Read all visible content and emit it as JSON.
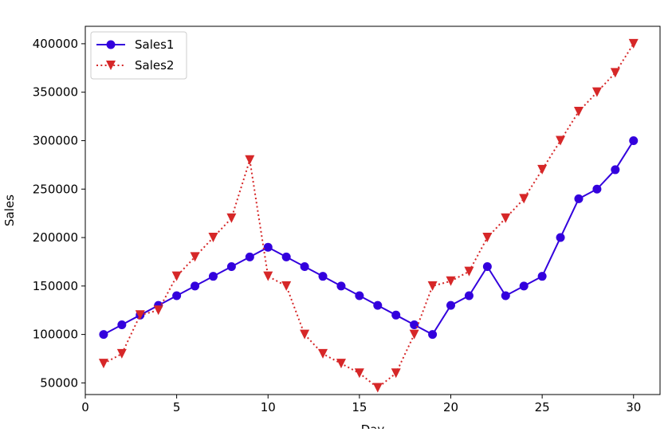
{
  "chart_data": {
    "type": "line",
    "title": "",
    "xlabel": "Day",
    "ylabel": "Sales",
    "xlim": [
      0,
      31.45
    ],
    "ylim": [
      38000,
      418000
    ],
    "grid": false,
    "legend_position": "upper left",
    "x_ticks": [
      0,
      5,
      10,
      15,
      20,
      25,
      30
    ],
    "y_ticks": [
      50000,
      100000,
      150000,
      200000,
      250000,
      300000,
      350000,
      400000
    ],
    "x": [
      1,
      2,
      3,
      4,
      5,
      6,
      7,
      8,
      9,
      10,
      11,
      12,
      13,
      14,
      15,
      16,
      17,
      18,
      19,
      20,
      21,
      22,
      23,
      24,
      25,
      26,
      27,
      28,
      29,
      30
    ],
    "series": [
      {
        "name": "Sales1",
        "color": "#3300dd",
        "line_style": "solid",
        "marker": "circle",
        "values": [
          100000,
          110000,
          120000,
          130000,
          140000,
          150000,
          160000,
          170000,
          180000,
          190000,
          180000,
          170000,
          160000,
          150000,
          140000,
          130000,
          120000,
          110000,
          100000,
          130000,
          140000,
          170000,
          140000,
          150000,
          160000,
          200000,
          240000,
          250000,
          270000,
          300000
        ]
      },
      {
        "name": "Sales2",
        "color": "#d62728",
        "line_style": "dotted",
        "marker": "triangle-down",
        "values": [
          70000,
          80000,
          120000,
          125000,
          160000,
          180000,
          200000,
          220000,
          280000,
          160000,
          150000,
          100000,
          80000,
          70000,
          60000,
          45000,
          60000,
          100000,
          150000,
          155000,
          165000,
          200000,
          220000,
          240000,
          270000,
          300000,
          330000,
          350000,
          370000,
          400000
        ]
      }
    ]
  }
}
